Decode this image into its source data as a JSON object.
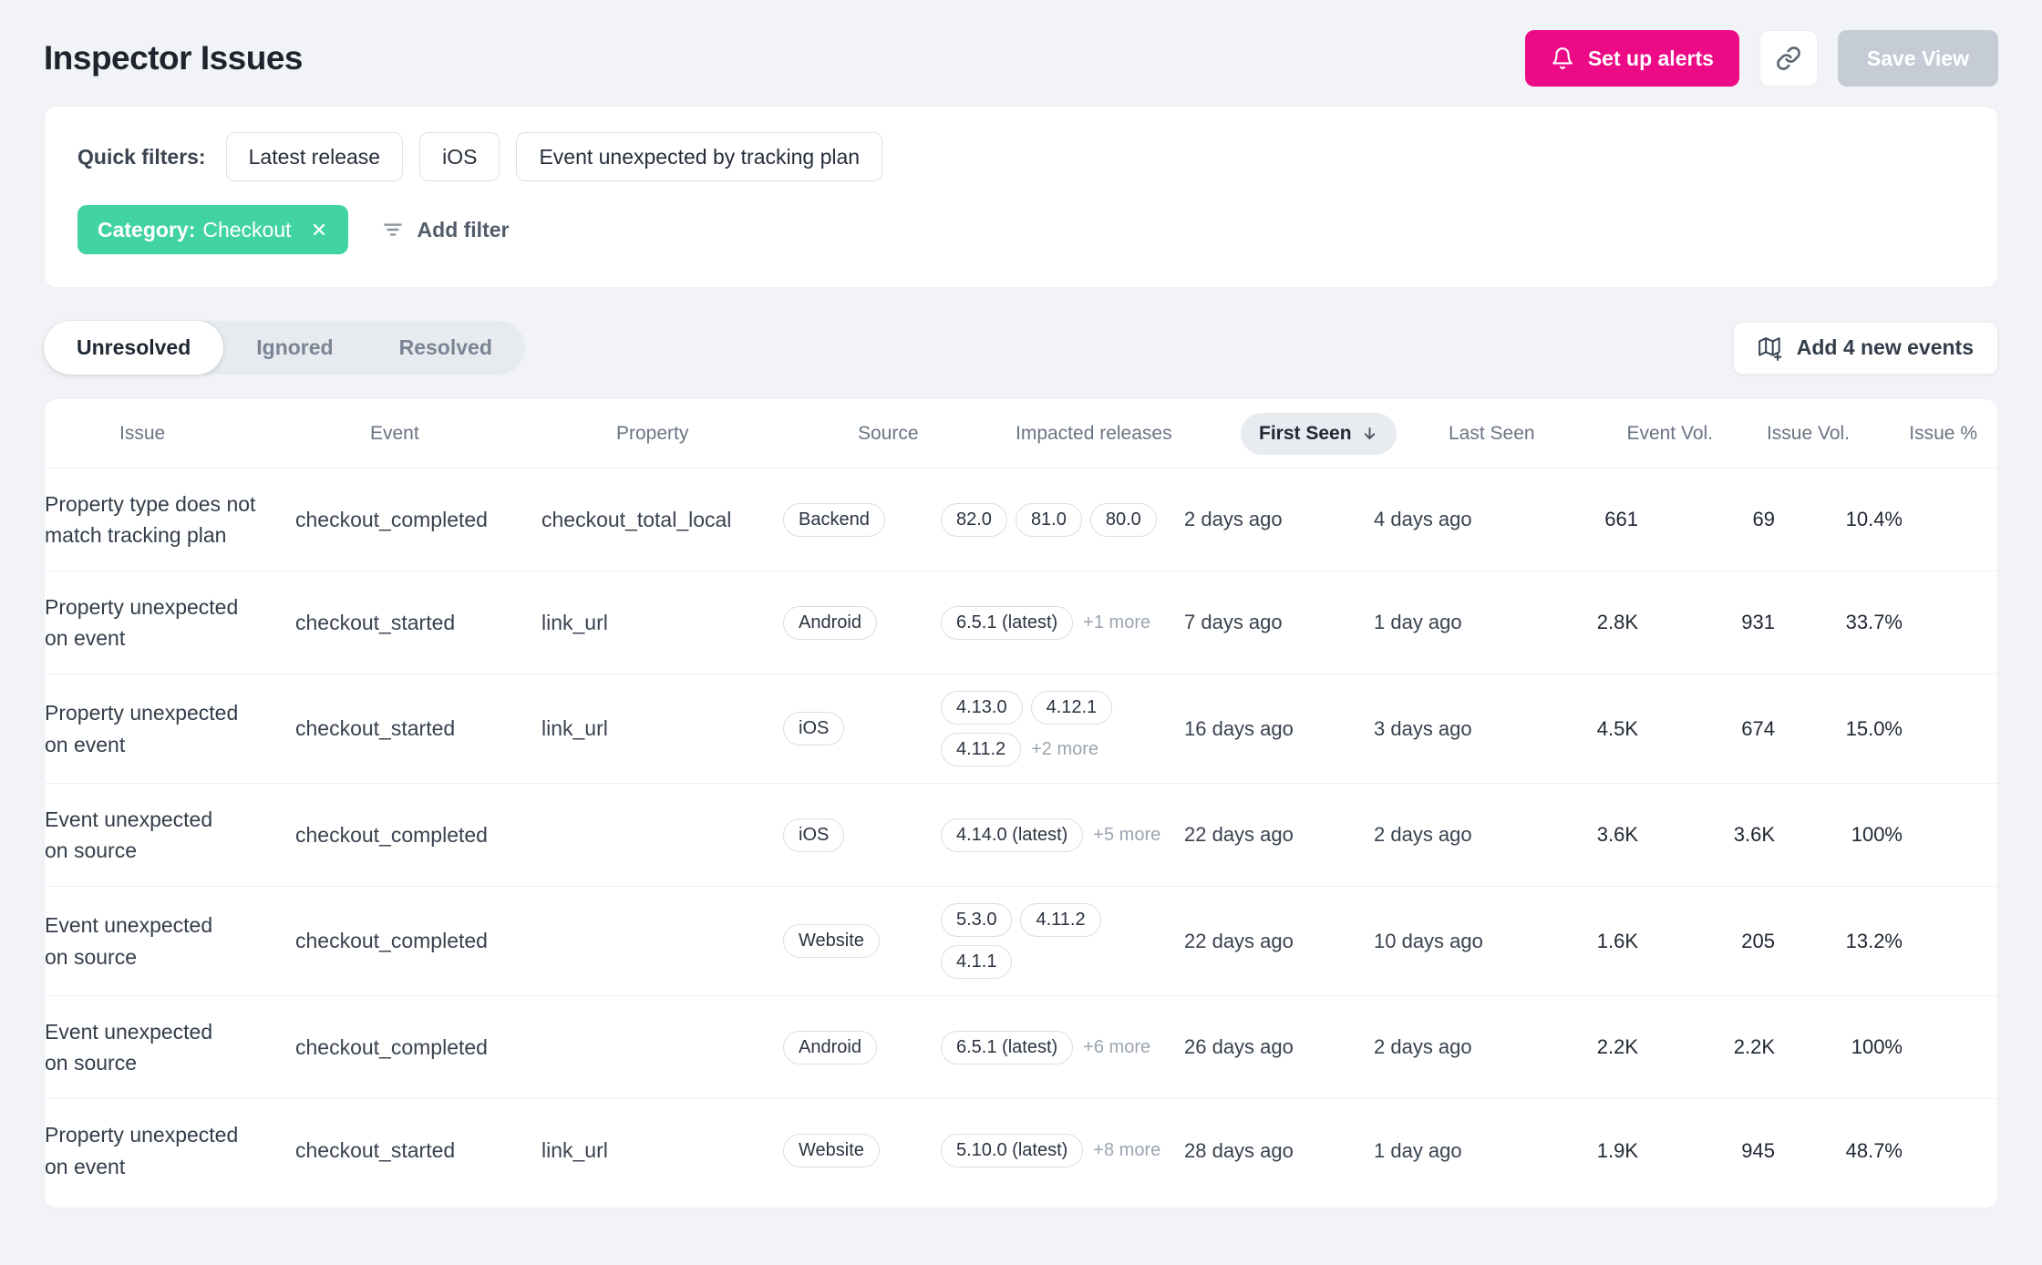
{
  "header": {
    "title": "Inspector Issues",
    "set_up_alerts_label": "Set up alerts",
    "save_view_label": "Save View"
  },
  "colors": {
    "accent_pink": "#ED0A87",
    "accent_green": "#41D3A2"
  },
  "filters": {
    "label": "Quick filters:",
    "quick": [
      "Latest release",
      "iOS",
      "Event unexpected by tracking plan"
    ],
    "active_filter": {
      "name": "Category:",
      "value": "Checkout"
    },
    "add_filter_label": "Add filter"
  },
  "tabs": {
    "items": [
      "Unresolved",
      "Ignored",
      "Resolved"
    ],
    "active": "Unresolved"
  },
  "add_events_label": "Add 4 new events",
  "table": {
    "columns": [
      "Issue",
      "Event",
      "Property",
      "Source",
      "Impacted releases",
      "First Seen",
      "Last Seen",
      "Event Vol.",
      "Issue Vol.",
      "Issue %"
    ],
    "sorted_column": "First Seen",
    "sort_direction": "desc",
    "rows": [
      {
        "issue": "Property type does not match tracking plan",
        "event": "checkout_completed",
        "property": "checkout_total_local",
        "source": "Backend",
        "releases": [
          "82.0",
          "81.0",
          "80.0"
        ],
        "more": "",
        "first_seen": "2 days ago",
        "last_seen": "4 days ago",
        "event_vol": "661",
        "issue_vol": "69",
        "issue_pct": "10.4%"
      },
      {
        "issue": "Property unexpected on event",
        "event": "checkout_started",
        "property": "link_url",
        "source": "Android",
        "releases": [
          "6.5.1 (latest)"
        ],
        "more": "+1 more",
        "first_seen": "7 days ago",
        "last_seen": "1 day ago",
        "event_vol": "2.8K",
        "issue_vol": "931",
        "issue_pct": "33.7%"
      },
      {
        "issue": "Property unexpected on event",
        "event": "checkout_started",
        "property": "link_url",
        "source": "iOS",
        "releases": [
          "4.13.0",
          "4.12.1",
          "4.11.2"
        ],
        "more": "+2 more",
        "first_seen": "16 days ago",
        "last_seen": "3 days ago",
        "event_vol": "4.5K",
        "issue_vol": "674",
        "issue_pct": "15.0%"
      },
      {
        "issue": "Event unexpected on source",
        "event": "checkout_completed",
        "property": "",
        "source": "iOS",
        "releases": [
          "4.14.0 (latest)"
        ],
        "more": "+5 more",
        "first_seen": "22 days ago",
        "last_seen": "2 days ago",
        "event_vol": "3.6K",
        "issue_vol": "3.6K",
        "issue_pct": "100%"
      },
      {
        "issue": "Event unexpected on source",
        "event": "checkout_completed",
        "property": "",
        "source": "Website",
        "releases": [
          "5.3.0",
          "4.11.2",
          "4.1.1"
        ],
        "more": "",
        "first_seen": "22 days ago",
        "last_seen": "10 days ago",
        "event_vol": "1.6K",
        "issue_vol": "205",
        "issue_pct": "13.2%"
      },
      {
        "issue": "Event unexpected on source",
        "event": "checkout_completed",
        "property": "",
        "source": "Android",
        "releases": [
          "6.5.1 (latest)"
        ],
        "more": "+6 more",
        "first_seen": "26 days ago",
        "last_seen": "2 days ago",
        "event_vol": "2.2K",
        "issue_vol": "2.2K",
        "issue_pct": "100%"
      },
      {
        "issue": "Property unexpected on event",
        "event": "checkout_started",
        "property": "link_url",
        "source": "Website",
        "releases": [
          "5.10.0 (latest)"
        ],
        "more": "+8 more",
        "first_seen": "28 days ago",
        "last_seen": "1 day ago",
        "event_vol": "1.9K",
        "issue_vol": "945",
        "issue_pct": "48.7%"
      }
    ]
  }
}
